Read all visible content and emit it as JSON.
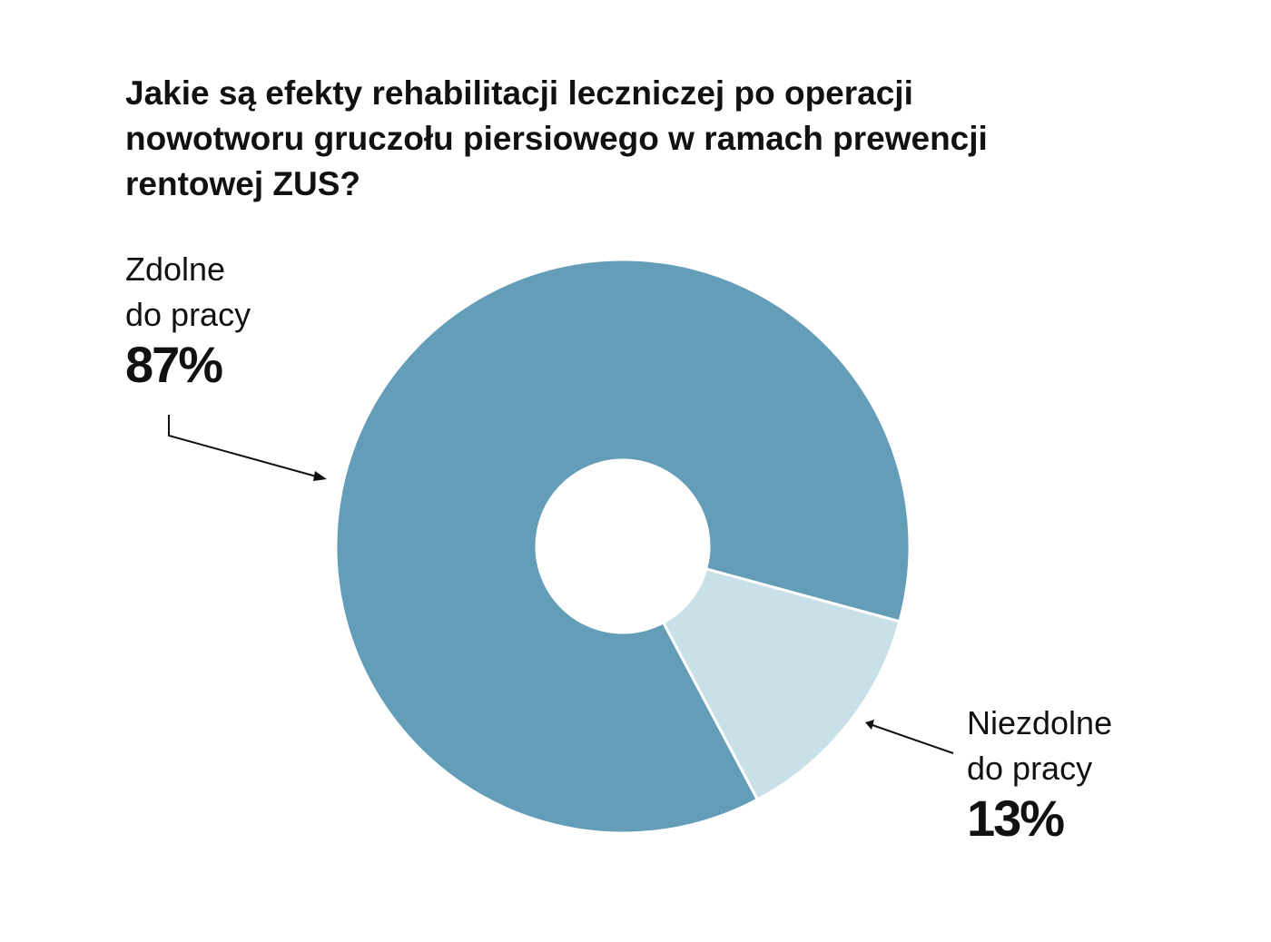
{
  "chart_data": {
    "type": "donut",
    "title": "Jakie są efekty rehabilitacji leczniczej po operacji\nnowotworu gruczołu piersiowego w ramach prewencji\nrentowej ZUS?",
    "categories": [
      "Zdolne\ndo pracy",
      "Niezdolne\ndo pracy"
    ],
    "values": [
      87,
      13
    ],
    "value_labels": [
      "87%",
      "13%"
    ],
    "colors": [
      "#639db8",
      "#c9e0e8"
    ]
  }
}
